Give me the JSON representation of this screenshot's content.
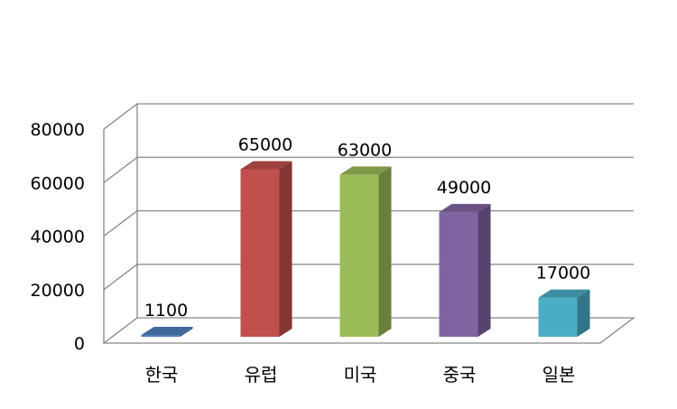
{
  "chart_data": {
    "type": "bar",
    "categories": [
      "한국",
      "유럽",
      "미국",
      "중국",
      "일본"
    ],
    "values": [
      1100,
      65000,
      63000,
      49000,
      17000
    ],
    "data_labels": [
      "1100",
      "65000",
      "63000",
      "49000",
      "17000"
    ],
    "colors": [
      "#4F81BD",
      "#C0504D",
      "#9BBB59",
      "#8064A2",
      "#4BACC6"
    ],
    "yticks": [
      0,
      20000,
      40000,
      60000,
      80000
    ],
    "ytick_labels": [
      "0",
      "20000",
      "40000",
      "60000",
      "80000"
    ],
    "ylim": [
      0,
      80000
    ],
    "grid": true,
    "three_d": true,
    "legend": "none"
  }
}
